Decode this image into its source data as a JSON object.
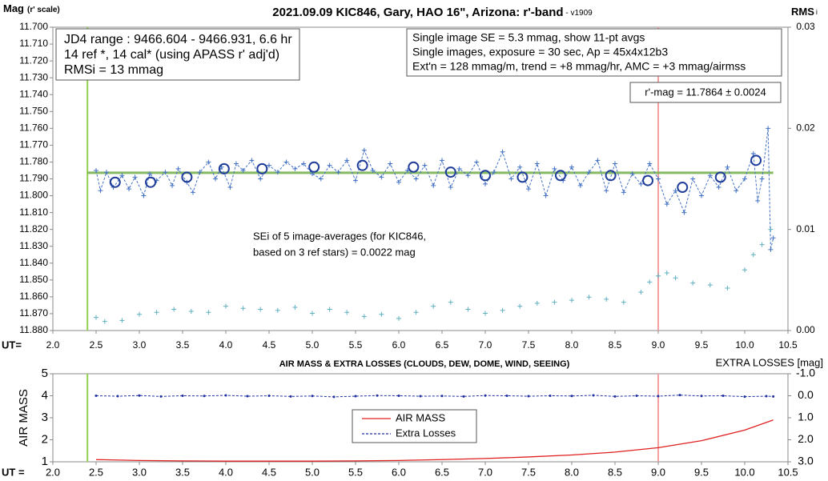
{
  "chart_data": [
    {
      "type": "scatter",
      "title": "2021.09.09 KIC846, Gary, HAO 16\", Arizona: r'-band",
      "subtitle": " - v1909",
      "y_label": "Mag",
      "y_label_note": "(r' scale)",
      "y2_label": "RMS",
      "y2_label_note": "i",
      "x_label": "UT=",
      "xlim": [
        2.0,
        10.5
      ],
      "xticks": [
        {
          "value": 2,
          "label": "2.0"
        },
        2.5,
        {
          "value": 3,
          "label": "3.0"
        },
        3.5,
        {
          "value": 4,
          "label": "4.0"
        },
        4.5,
        {
          "value": 5,
          "label": "5.0"
        },
        5.5,
        {
          "value": 6,
          "label": "6.0"
        },
        6.5,
        {
          "value": 7,
          "label": "7.0"
        },
        7.5,
        {
          "value": 8,
          "label": "8.0"
        },
        8.5,
        {
          "value": 9,
          "label": "9.0"
        },
        9.5,
        {
          "value": 10,
          "label": "10.0"
        },
        10.5
      ],
      "ylim": [
        11.88,
        11.7
      ],
      "yticks": [
        {
          "value": 11.7,
          "label": "11.700"
        },
        {
          "value": 11.71,
          "label": "11.710"
        },
        {
          "value": 11.72,
          "label": "11.720"
        },
        {
          "value": 11.73,
          "label": "11.730"
        },
        {
          "value": 11.74,
          "label": "11.740"
        },
        {
          "value": 11.75,
          "label": "11.750"
        },
        {
          "value": 11.76,
          "label": "11.760"
        },
        {
          "value": 11.77,
          "label": "11.770"
        },
        {
          "value": 11.78,
          "label": "11.780"
        },
        {
          "value": 11.79,
          "label": "11.790"
        },
        {
          "value": 11.8,
          "label": "11.800"
        },
        {
          "value": 11.81,
          "label": "11.810"
        },
        {
          "value": 11.82,
          "label": "11.820"
        },
        {
          "value": 11.83,
          "label": "11.830"
        },
        {
          "value": 11.84,
          "label": "11.840"
        },
        {
          "value": 11.85,
          "label": "11.850"
        },
        {
          "value": 11.86,
          "label": "11.860"
        },
        {
          "value": 11.87,
          "label": "11.870"
        },
        {
          "value": 11.88,
          "label": "11.880"
        }
      ],
      "y2lim": [
        0,
        0.03
      ],
      "y2ticks": [
        {
          "value": 0,
          "label": "0.00"
        },
        0.01,
        0.02,
        0.03
      ],
      "vlines": [
        {
          "x": 2.4,
          "color": "#92d050"
        },
        {
          "x": 9.0,
          "color": "#f4a0a0"
        }
      ],
      "mean": {
        "value": 11.7864,
        "from": 2.4,
        "to": 10.33,
        "color": "#70ad47"
      },
      "series": [
        {
          "name": "Single images",
          "color": "#4472c4",
          "marker": "plus",
          "line": "dashed",
          "x": [
            2.5,
            2.55,
            2.62,
            2.7,
            2.8,
            2.88,
            2.95,
            3.05,
            3.12,
            3.2,
            3.3,
            3.38,
            3.45,
            3.55,
            3.62,
            3.7,
            3.8,
            3.88,
            3.95,
            4.05,
            4.12,
            4.2,
            4.3,
            4.4,
            4.5,
            4.6,
            4.7,
            4.8,
            4.9,
            5.0,
            5.1,
            5.2,
            5.3,
            5.4,
            5.5,
            5.6,
            5.7,
            5.8,
            5.9,
            6.0,
            6.1,
            6.2,
            6.3,
            6.4,
            6.5,
            6.6,
            6.7,
            6.8,
            6.9,
            7.0,
            7.1,
            7.2,
            7.3,
            7.4,
            7.5,
            7.6,
            7.7,
            7.8,
            7.9,
            8.0,
            8.1,
            8.2,
            8.3,
            8.4,
            8.5,
            8.6,
            8.7,
            8.8,
            8.9,
            9.0,
            9.1,
            9.2,
            9.3,
            9.4,
            9.5,
            9.6,
            9.7,
            9.8,
            9.9,
            10.0,
            10.1,
            10.15,
            10.2,
            10.27,
            10.3,
            10.33
          ],
          "values": [
            11.785,
            11.797,
            11.786,
            11.795,
            11.788,
            11.796,
            11.789,
            11.8,
            11.787,
            11.791,
            11.786,
            11.794,
            11.784,
            11.792,
            11.798,
            11.786,
            11.78,
            11.79,
            11.783,
            11.795,
            11.781,
            11.785,
            11.779,
            11.79,
            11.782,
            11.786,
            11.78,
            11.784,
            11.781,
            11.787,
            11.79,
            11.782,
            11.786,
            11.779,
            11.791,
            11.773,
            11.785,
            11.789,
            11.781,
            11.792,
            11.785,
            11.79,
            11.782,
            11.794,
            11.779,
            11.795,
            11.784,
            11.788,
            11.78,
            11.793,
            11.786,
            11.774,
            11.79,
            11.783,
            11.796,
            11.781,
            11.8,
            11.784,
            11.791,
            11.783,
            11.794,
            11.786,
            11.779,
            11.797,
            11.781,
            11.798,
            11.787,
            11.793,
            11.781,
            11.79,
            11.805,
            11.797,
            11.81,
            11.79,
            11.8,
            11.788,
            11.795,
            11.783,
            11.797,
            11.79,
            11.775,
            11.803,
            11.79,
            11.76,
            11.832,
            11.825
          ]
        },
        {
          "name": "11-pt avgs",
          "color": "#1f3d99",
          "marker": "circle",
          "line": "none",
          "x": [
            2.72,
            3.13,
            3.55,
            3.98,
            4.42,
            5.02,
            5.58,
            6.17,
            6.6,
            7.0,
            7.43,
            7.87,
            8.45,
            8.88,
            9.28,
            9.72,
            10.13
          ],
          "values": [
            11.792,
            11.792,
            11.789,
            11.784,
            11.784,
            11.783,
            11.782,
            11.783,
            11.786,
            11.788,
            11.789,
            11.788,
            11.788,
            11.791,
            11.795,
            11.789,
            11.779
          ]
        },
        {
          "name": "RMSi",
          "color": "#5fb0c0",
          "marker": "plus",
          "line": "none",
          "axis": "y2",
          "x": [
            2.5,
            2.6,
            2.8,
            3.0,
            3.2,
            3.4,
            3.6,
            3.8,
            4.0,
            4.2,
            4.4,
            4.6,
            4.8,
            5.0,
            5.2,
            5.4,
            5.6,
            5.8,
            6.0,
            6.2,
            6.4,
            6.6,
            6.8,
            7.0,
            7.2,
            7.4,
            7.6,
            7.8,
            8.0,
            8.2,
            8.4,
            8.6,
            8.8,
            8.9,
            9.0,
            9.1,
            9.2,
            9.4,
            9.6,
            9.8,
            10.0,
            10.1,
            10.2,
            10.3
          ],
          "values": [
            0.0013,
            0.0009,
            0.001,
            0.0016,
            0.0018,
            0.0021,
            0.0019,
            0.0018,
            0.0024,
            0.0022,
            0.0021,
            0.002,
            0.0023,
            0.0017,
            0.0021,
            0.0018,
            0.0014,
            0.0016,
            0.0012,
            0.0018,
            0.0024,
            0.0028,
            0.0021,
            0.0017,
            0.002,
            0.0024,
            0.0027,
            0.0028,
            0.003,
            0.0033,
            0.0031,
            0.0028,
            0.0038,
            0.0048,
            0.0054,
            0.0057,
            0.0052,
            0.0047,
            0.0045,
            0.0042,
            0.006,
            0.0075,
            0.0085,
            0.01
          ]
        }
      ],
      "annotations": {
        "info": [
          "JD4 range : 9466.604 - 9466.931,  6.6  hr",
          "14 ref *, 14 cal* (using APASS r' adj'd)",
          "RMSi = 13 mmag"
        ],
        "settings": [
          "Single image SE = 5.3 mmag, show  11-pt avgs",
          "Single images, exposure = 30 sec, Ap = 45x4x12b3",
          "Ext'n = 128 mmag/m, trend =  +8 mmag/hr, AMC = +3 mmag/airmss"
        ],
        "result": "r'-mag = 11.7864 ± 0.0024",
        "sei": [
          "SEi of 5 image-averages (for KIC846,",
          "based on 3 ref stars) = 0.0022 mag"
        ]
      }
    },
    {
      "type": "line",
      "title": "AIR MASS & EXTRA LOSSES (CLOUDS, DEW, DOME, WIND, SEEING)",
      "y_label": "AIR MASS",
      "y2_label": "EXTRA LOSSES [mag]",
      "x_label": "UT =",
      "xlim": [
        2.0,
        10.5
      ],
      "xticks": [
        {
          "value": 2,
          "label": "2.0"
        },
        2.5,
        {
          "value": 3,
          "label": "3.0"
        },
        3.5,
        {
          "value": 4,
          "label": "4.0"
        },
        4.5,
        {
          "value": 5,
          "label": "5.0"
        },
        5.5,
        {
          "value": 6,
          "label": "6.0"
        },
        6.5,
        {
          "value": 7,
          "label": "7.0"
        },
        7.5,
        {
          "value": 8,
          "label": "8.0"
        },
        8.5,
        {
          "value": 9,
          "label": "9.0"
        },
        9.5,
        {
          "value": 10,
          "label": "10.0"
        },
        10.5
      ],
      "ylim": [
        1,
        5
      ],
      "yticks": [
        1,
        2,
        3,
        4,
        5
      ],
      "y2lim": [
        3,
        -1
      ],
      "y2ticks": [
        {
          "value": -1,
          "label": "-1.0"
        },
        {
          "value": 0,
          "label": "0.0"
        },
        {
          "value": 1,
          "label": "1.0"
        },
        {
          "value": 2,
          "label": "2.0"
        },
        {
          "value": 3,
          "label": "3.0"
        }
      ],
      "vlines": [
        {
          "x": 2.4,
          "color": "#92d050"
        },
        {
          "x": 9.0,
          "color": "#f4a0a0"
        }
      ],
      "series": [
        {
          "name": "AIR MASS",
          "color": "#e02020",
          "marker": "none",
          "line": "solid",
          "x": [
            2.5,
            3.0,
            3.5,
            4.0,
            4.5,
            5.0,
            5.5,
            6.0,
            6.5,
            7.0,
            7.5,
            8.0,
            8.5,
            9.0,
            9.5,
            10.0,
            10.33
          ],
          "values": [
            1.1,
            1.06,
            1.04,
            1.03,
            1.03,
            1.03,
            1.04,
            1.06,
            1.1,
            1.15,
            1.22,
            1.31,
            1.44,
            1.64,
            1.96,
            2.44,
            2.9
          ]
        },
        {
          "name": "Extra Losses",
          "color": "#1f2fa0",
          "marker": "dot",
          "line": "dashed",
          "axis": "y2",
          "x": [
            2.5,
            2.75,
            3.0,
            3.25,
            3.5,
            3.75,
            4.0,
            4.25,
            4.5,
            4.75,
            5.0,
            5.25,
            5.5,
            5.75,
            6.0,
            6.25,
            6.5,
            6.75,
            7.0,
            7.25,
            7.5,
            7.75,
            8.0,
            8.25,
            8.5,
            8.75,
            9.0,
            9.25,
            9.5,
            9.75,
            10.0,
            10.25,
            10.33
          ],
          "values": [
            0.0,
            0.02,
            -0.01,
            0.03,
            0.0,
            0.01,
            -0.02,
            0.02,
            0.0,
            0.03,
            0.01,
            0.05,
            0.02,
            -0.01,
            0.0,
            0.02,
            0.01,
            0.03,
            -0.01,
            0.0,
            0.02,
            0.0,
            0.01,
            -0.02,
            0.03,
            0.0,
            0.02,
            -0.03,
            0.01,
            0.0,
            0.04,
            0.02,
            0.03
          ]
        }
      ]
    }
  ]
}
